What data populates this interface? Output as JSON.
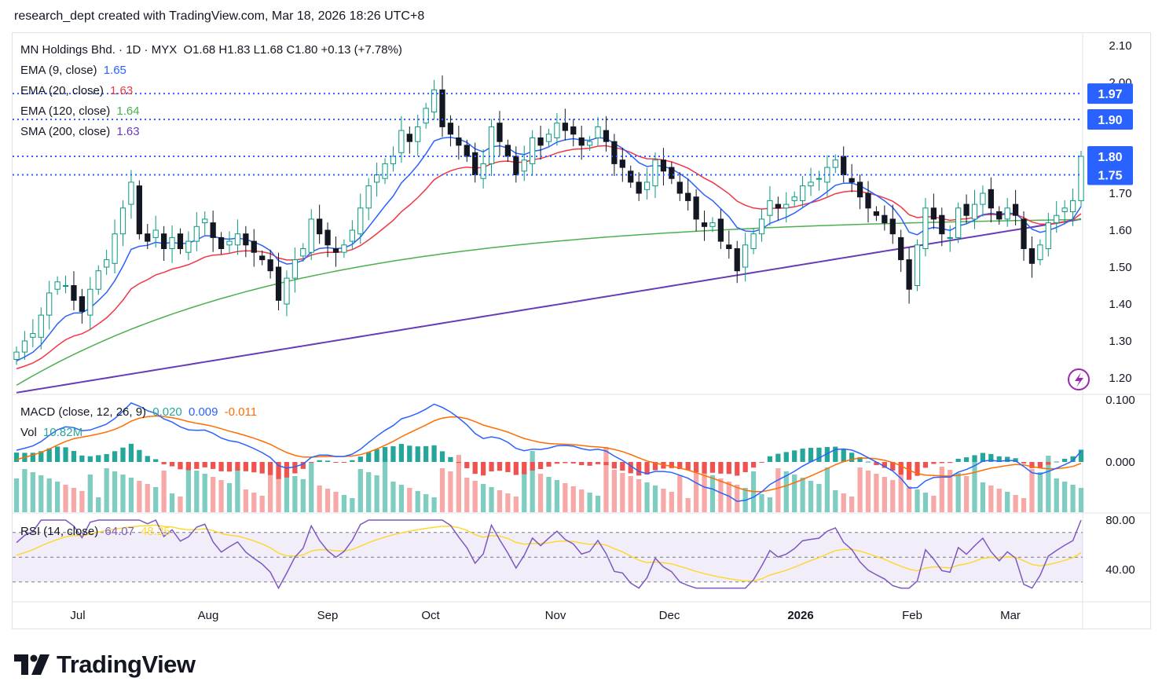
{
  "header": {
    "text": "research_dept created with TradingView.com, Mar 18, 2026 18:26 UTC+8"
  },
  "legend": {
    "symbol": "MN Holdings Bhd. · 1D · MYX",
    "ohlc": "O1.68  H1.83  L1.68  C1.80  +0.13 (+7.78%)",
    "ema9": {
      "label": "EMA (9, close)",
      "value": "1.65",
      "color": "#2962ff"
    },
    "ema20": {
      "label": "EMA (20, close)",
      "value": "1.63",
      "color": "#f23645"
    },
    "ema120": {
      "label": "EMA (120, close)",
      "value": "1.64",
      "color": "#4caf50"
    },
    "sma200": {
      "label": "SMA (200, close)",
      "value": "1.63",
      "color": "#673ab7"
    }
  },
  "macd_legend": {
    "label": "MACD (close, 12, 26, 9)",
    "hist": "0.020",
    "macd": "0.009",
    "signal": "-0.011"
  },
  "vol_legend": {
    "label": "Vol",
    "value": "10.82M"
  },
  "rsi_legend": {
    "label": "RSI (14, close)",
    "rsi": "64.07",
    "ma": "48.25"
  },
  "price_axis": [
    "2.10",
    "2.00",
    "1.90",
    "1.80",
    "1.70",
    "1.60",
    "1.50",
    "1.40",
    "1.30",
    "1.20"
  ],
  "macd_axis": [
    "0.100",
    "0.000"
  ],
  "rsi_axis": [
    "80.00",
    "40.00"
  ],
  "time_axis": [
    "Jul",
    "Aug",
    "Sep",
    "Oct",
    "Nov",
    "Dec",
    "2026",
    "Feb",
    "Mar"
  ],
  "price_tags": [
    "1.97",
    "1.90",
    "1.80",
    "1.75"
  ],
  "colors": {
    "up": "#089981",
    "down": "#131722",
    "tag_bg": "#2962ff",
    "vol_up": "#7fccc0",
    "vol_down": "#f7a9a7",
    "macd_pos": "#26a69a",
    "macd_neg": "#ef5350",
    "rsi": "#7e57c2",
    "rsi_ma": "#fdd835"
  },
  "brand": "TradingView",
  "chart_data": {
    "type": "candlestick",
    "symbol": "MN Holdings Bhd.",
    "interval": "1D",
    "x": [
      "Jul",
      "Aug",
      "Sep",
      "Oct",
      "Nov",
      "Dec",
      "2026",
      "Feb",
      "Mar"
    ],
    "ylim": [
      1.2,
      2.1
    ],
    "close_series": [
      1.27,
      1.3,
      1.32,
      1.37,
      1.43,
      1.46,
      1.45,
      1.41,
      1.38,
      1.44,
      1.49,
      1.52,
      1.59,
      1.66,
      1.73,
      1.59,
      1.57,
      1.6,
      1.55,
      1.58,
      1.55,
      1.57,
      1.61,
      1.63,
      1.58,
      1.55,
      1.57,
      1.59,
      1.56,
      1.54,
      1.52,
      1.49,
      1.41,
      1.47,
      1.52,
      1.55,
      1.63,
      1.59,
      1.56,
      1.54,
      1.56,
      1.6,
      1.66,
      1.72,
      1.75,
      1.78,
      1.8,
      1.87,
      1.84,
      1.88,
      1.93,
      1.98,
      1.88,
      1.86,
      1.83,
      1.8,
      1.75,
      1.78,
      1.88,
      1.84,
      1.8,
      1.75,
      1.79,
      1.85,
      1.83,
      1.86,
      1.89,
      1.87,
      1.86,
      1.83,
      1.84,
      1.88,
      1.84,
      1.78,
      1.77,
      1.73,
      1.7,
      1.73,
      1.79,
      1.76,
      1.74,
      1.7,
      1.68,
      1.63,
      1.61,
      1.62,
      1.57,
      1.55,
      1.49,
      1.56,
      1.59,
      1.63,
      1.68,
      1.66,
      1.67,
      1.69,
      1.72,
      1.73,
      1.74,
      1.77,
      1.79,
      1.75,
      1.73,
      1.69,
      1.66,
      1.64,
      1.62,
      1.59,
      1.52,
      1.44,
      1.56,
      1.66,
      1.63,
      1.59,
      1.58,
      1.66,
      1.64,
      1.67,
      1.7,
      1.66,
      1.63,
      1.66,
      1.64,
      1.55,
      1.51,
      1.56,
      1.62,
      1.64,
      1.66,
      1.68,
      1.8
    ],
    "overlays": {
      "ema9_last": 1.65,
      "ema20_last": 1.63,
      "ema120_last": 1.64,
      "sma200_last": 1.63
    },
    "horizontal_levels": [
      1.97,
      1.9,
      1.8,
      1.75
    ],
    "macd": {
      "histogram": 0.02,
      "macd": 0.009,
      "signal": -0.011
    },
    "volume_last": "10.82M",
    "rsi": {
      "value": 64.07,
      "ma": 48.25,
      "bands": [
        70,
        30
      ]
    }
  }
}
